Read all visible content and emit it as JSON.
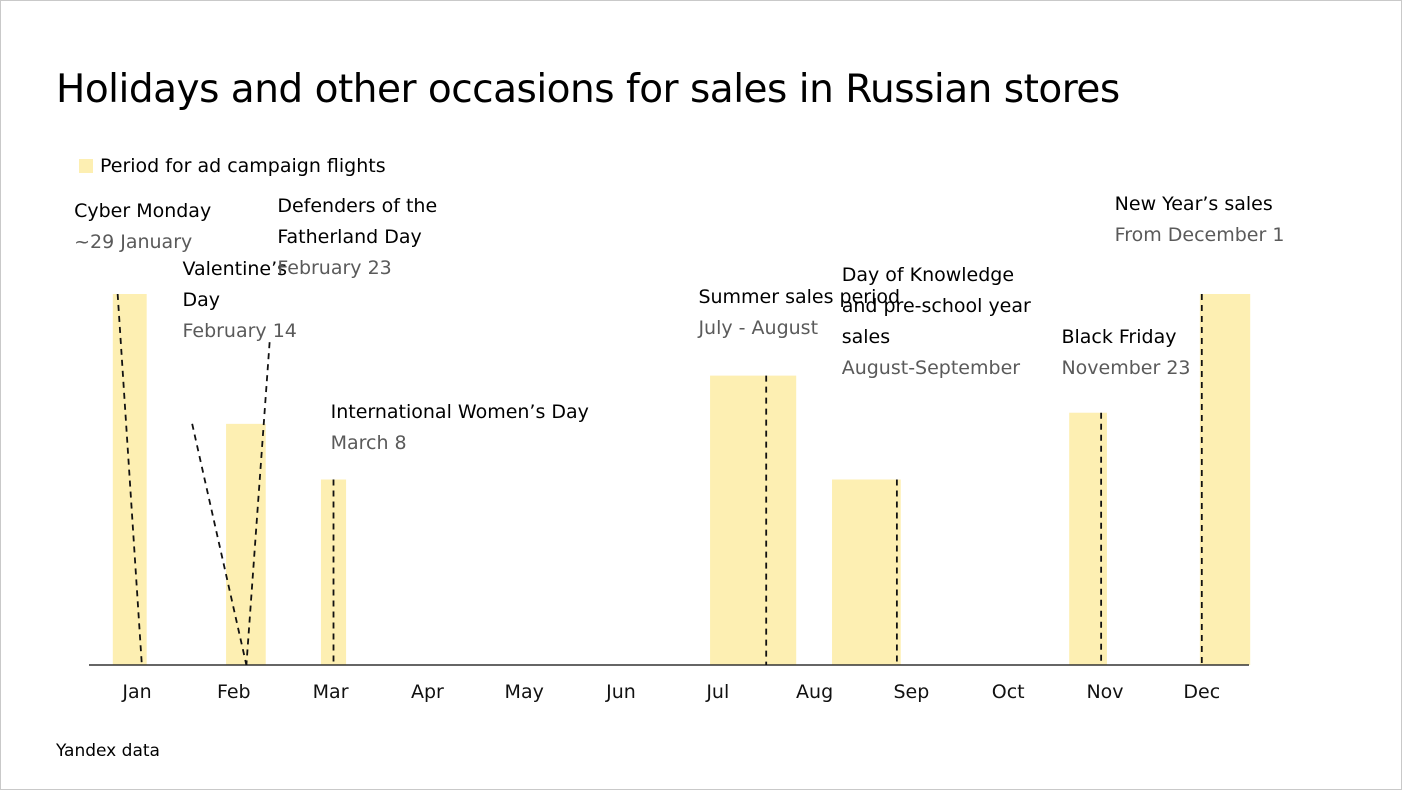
{
  "title": "Holidays and other occasions for sales in Russian stores",
  "legend_label": "Period for ad campaign flights",
  "source": "Yandex data",
  "colors": {
    "period": "#fdefb2",
    "axis": "#333333",
    "marker": "#111111",
    "date_text": "#5a5a5a"
  },
  "chart_data": {
    "type": "bar",
    "title": "Holidays and other occasions for sales in Russian stores",
    "xlabel": "",
    "ylabel": "",
    "months": [
      "Jan",
      "Feb",
      "Mar",
      "Apr",
      "May",
      "Jun",
      "Jul",
      "Aug",
      "Sep",
      "Oct",
      "Nov",
      "Dec"
    ],
    "legend": {
      "label": "Period for ad campaign flights",
      "position": "top-left"
    },
    "periods": [
      {
        "name": "cyber-monday",
        "start_month": 0.75,
        "end_month": 1.1,
        "level": 1.0
      },
      {
        "name": "feb-holidays",
        "start_month": 1.92,
        "end_month": 2.33,
        "level": 0.65
      },
      {
        "name": "womens-day",
        "start_month": 2.9,
        "end_month": 3.16,
        "level": 0.5
      },
      {
        "name": "summer-sales",
        "start_month": 6.92,
        "end_month": 7.81,
        "level": 0.78
      },
      {
        "name": "day-of-knowledge",
        "start_month": 8.18,
        "end_month": 8.89,
        "level": 0.5
      },
      {
        "name": "black-friday",
        "start_month": 10.63,
        "end_month": 11.02,
        "level": 0.68
      },
      {
        "name": "new-years-sales",
        "start_month": 11.98,
        "end_month": 12.5,
        "level": 1.0
      }
    ],
    "events": [
      {
        "name": "Cyber Monday",
        "lines": [
          "Cyber Monday"
        ],
        "date": "~29 January",
        "marker_month": 1.05,
        "marker_top_month": 0.8,
        "marker_top_level": 1.0,
        "label_month": 0.35,
        "label_level": 1.18
      },
      {
        "name": "Valentine’s Day",
        "lines": [
          "Valentine’s",
          "Day"
        ],
        "date": "February 14",
        "marker_month": 2.13,
        "marker_top_month": 1.57,
        "marker_top_level": 0.65,
        "label_month": 1.47,
        "label_level": 0.94
      },
      {
        "name": "Defenders of the Fatherland Day",
        "lines": [
          "Defenders of the",
          "Fatherland Day"
        ],
        "date": "February 23",
        "marker_month": 2.13,
        "marker_top_month": 2.37,
        "marker_top_level": 0.87,
        "label_month": 2.45,
        "label_level": 1.11
      },
      {
        "name": "International Women’s Day",
        "lines": [
          "International Women’s Day"
        ],
        "date": "March 8",
        "marker_month": 3.03,
        "marker_top_month": 3.03,
        "marker_top_level": 0.5,
        "label_month": 3.0,
        "label_level": 0.64
      },
      {
        "name": "Summer sales period",
        "lines": [
          "Summer sales period"
        ],
        "date": "July - August",
        "marker_month": 7.5,
        "marker_top_month": 7.5,
        "marker_top_level": 0.78,
        "label_month": 6.8,
        "label_level": 0.95
      },
      {
        "name": "Day of Knowledge and pre-school year sales",
        "lines": [
          "Day of Knowledge",
          "and pre-school year",
          "sales"
        ],
        "date": "August-September",
        "marker_month": 8.85,
        "marker_top_month": 8.85,
        "marker_top_level": 0.5,
        "label_month": 8.28,
        "label_level": 0.84
      },
      {
        "name": "Black Friday",
        "lines": [
          "Black Friday"
        ],
        "date": "November 23",
        "marker_month": 10.96,
        "marker_top_month": 10.96,
        "marker_top_level": 0.68,
        "label_month": 10.55,
        "label_level": 0.84
      },
      {
        "name": "New Year’s sales",
        "lines": [
          "New Year’s sales"
        ],
        "date": "From December 1",
        "marker_month": 12.0,
        "marker_top_month": 12.0,
        "marker_top_level": 1.0,
        "label_month": 11.1,
        "label_level": 1.2
      }
    ]
  }
}
